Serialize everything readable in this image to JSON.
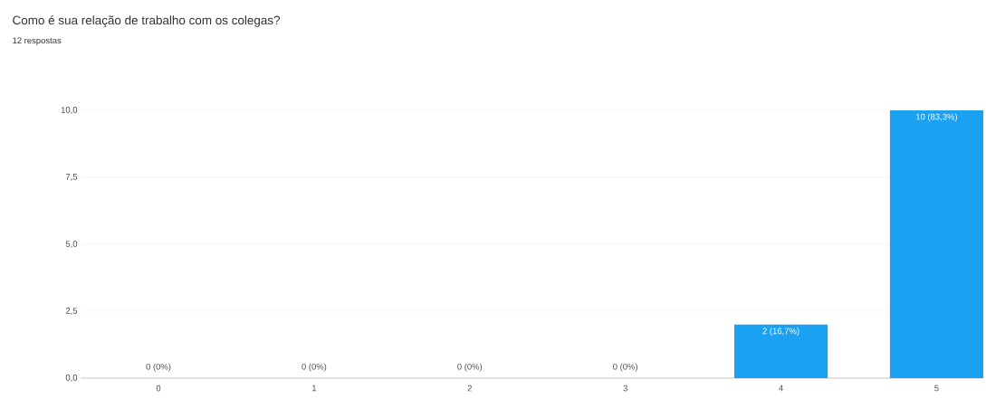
{
  "chart_data": {
    "type": "bar",
    "title": "Como é sua relação de trabalho com os colegas?",
    "subtitle": "12 respostas",
    "categories": [
      "0",
      "1",
      "2",
      "3",
      "4",
      "5"
    ],
    "values": [
      0,
      0,
      0,
      0,
      2,
      10
    ],
    "value_labels": [
      "0 (0%)",
      "0 (0%)",
      "0 (0%)",
      "0 (0%)",
      "2 (16,7%)",
      "10 (83,3%)"
    ],
    "color": "#1aa1f2",
    "ylim": [
      0,
      10
    ],
    "yticks": [
      {
        "value": 0,
        "label": "0,0"
      },
      {
        "value": 2.5,
        "label": "2,5"
      },
      {
        "value": 5,
        "label": "5,0"
      },
      {
        "value": 7.5,
        "label": "7,5"
      },
      {
        "value": 10,
        "label": "10,0"
      }
    ],
    "grid": "y"
  }
}
